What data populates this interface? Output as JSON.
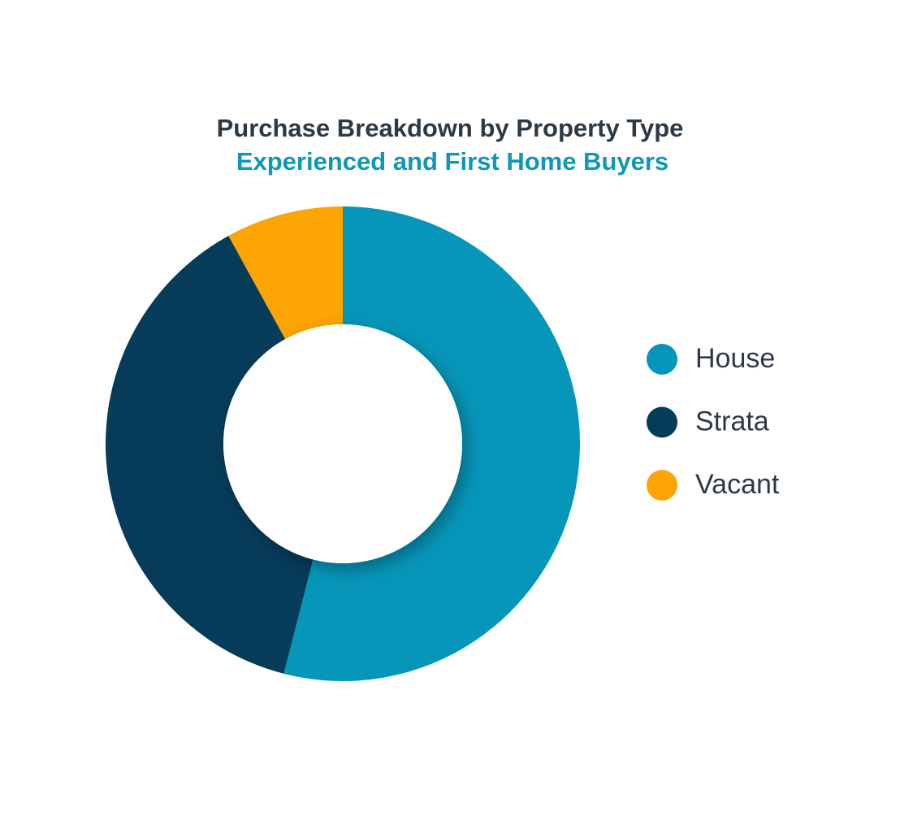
{
  "chart_data": {
    "type": "donut",
    "title": "Purchase Breakdown by Property Type",
    "subtitle": "Experienced and First Home Buyers",
    "categories": [
      "House",
      "Strata",
      "Vacant"
    ],
    "values": [
      54,
      38,
      8
    ],
    "colors": [
      "#0696b9",
      "#063c5a",
      "#fca503"
    ]
  }
}
